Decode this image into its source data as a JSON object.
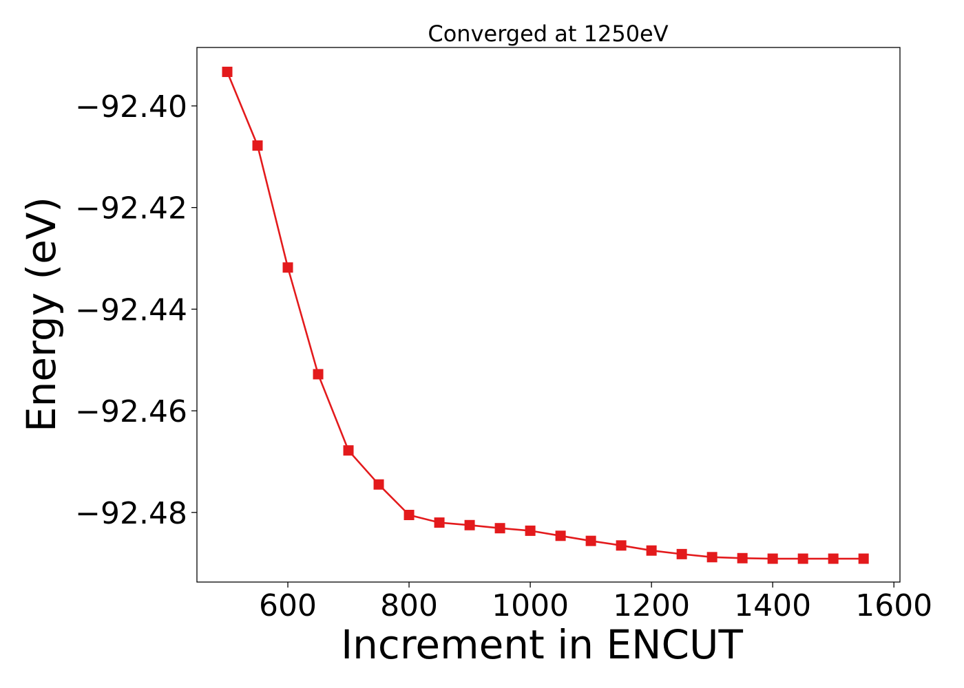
{
  "chart_data": {
    "type": "line",
    "title": "Converged at 1250eV",
    "xlabel": "Increment in ENCUT",
    "ylabel": "Energy (eV)",
    "xlim": [
      450,
      1610
    ],
    "ylim": [
      -92.4937,
      -92.3885
    ],
    "x_ticks": [
      600,
      800,
      1000,
      1200,
      1400,
      1600
    ],
    "x_tick_labels": [
      "600",
      "800",
      "1000",
      "1200",
      "1400",
      "1600"
    ],
    "y_ticks": [
      -92.4,
      -92.42,
      -92.44,
      -92.46,
      -92.48
    ],
    "y_tick_labels": [
      "−92.40",
      "−92.42",
      "−92.44",
      "−92.46",
      "−92.48"
    ],
    "grid": false,
    "marker": "square",
    "color": "#e31a1c",
    "series": [
      {
        "x": [
          500,
          550,
          600,
          650,
          700,
          750,
          800,
          850,
          900,
          950,
          1000,
          1050,
          1100,
          1150,
          1200,
          1250,
          1300,
          1350,
          1400,
          1450,
          1500,
          1550
        ],
        "values": [
          -92.3933,
          -92.4078,
          -92.4318,
          -92.4528,
          -92.4678,
          -92.4745,
          -92.4805,
          -92.482,
          -92.4825,
          -92.4831,
          -92.4836,
          -92.4846,
          -92.4856,
          -92.4865,
          -92.4875,
          -92.4882,
          -92.4888,
          -92.489,
          -92.4891,
          -92.4891,
          -92.4891,
          -92.4891
        ]
      }
    ]
  }
}
